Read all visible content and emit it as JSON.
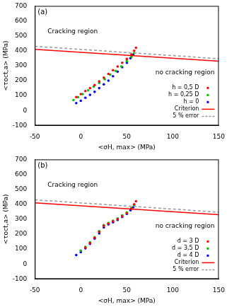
{
  "chart_data": [
    {
      "type": "scatter",
      "title": "(a)",
      "x_label": "<σH, max> (MPa)",
      "y_label": "<τoct,a> (MPa)",
      "annotations": [
        "Cracking region",
        "no cracking region"
      ],
      "xlim": [
        -50,
        150
      ],
      "xticks": [
        -50,
        0,
        50,
        100,
        150
      ],
      "ylim": [
        -100,
        700
      ],
      "yticks": [
        -100,
        0,
        100,
        200,
        300,
        400,
        500,
        600,
        700
      ],
      "grid": false,
      "legend": "lower right",
      "series": [
        {
          "name": "h = 0,5 D",
          "color": "#ff0000",
          "type": "scatter",
          "marker": "circle",
          "x": [
            -5,
            0,
            5,
            10,
            15,
            20,
            25,
            30,
            35,
            40,
            45,
            50,
            55,
            58,
            60
          ],
          "values": [
            90,
            110,
            130,
            150,
            170,
            195,
            220,
            245,
            270,
            295,
            320,
            345,
            375,
            400,
            420
          ]
        },
        {
          "name": "h = 0,25 D",
          "color": "#00c000",
          "type": "scatter",
          "marker": "circle",
          "x": [
            -8,
            -3,
            2,
            8,
            14,
            20,
            26,
            32,
            38,
            44,
            50,
            55,
            58
          ],
          "values": [
            70,
            90,
            110,
            135,
            160,
            185,
            210,
            240,
            265,
            295,
            330,
            360,
            385
          ]
        },
        {
          "name": "h = 0",
          "color": "#0000ff",
          "type": "scatter",
          "marker": "circle",
          "x": [
            -5,
            0,
            5,
            10,
            15,
            20,
            25,
            30,
            35,
            40,
            45,
            50,
            54,
            57
          ],
          "values": [
            50,
            65,
            85,
            105,
            125,
            150,
            175,
            200,
            230,
            260,
            290,
            320,
            350,
            375
          ]
        },
        {
          "name": "Criterion",
          "color": "#ff0000",
          "type": "line",
          "marker": "none",
          "line_style": "solid",
          "x": [
            -50,
            150
          ],
          "values": [
            410,
            330
          ]
        },
        {
          "name": "5 % error",
          "color": "#999999",
          "type": "line",
          "marker": "none",
          "line_style": "dashed",
          "x": [
            -50,
            150
          ],
          "values": [
            430,
            347
          ]
        }
      ]
    },
    {
      "type": "scatter",
      "title": "(b)",
      "x_label": "<σH, max> (MPa)",
      "y_label": "<τoct,a> (MPa)",
      "annotations": [
        "Cracking region",
        "no cracking region"
      ],
      "xlim": [
        -50,
        150
      ],
      "xticks": [
        -50,
        0,
        50,
        100,
        150
      ],
      "ylim": [
        -100,
        700
      ],
      "yticks": [
        -100,
        0,
        100,
        200,
        300,
        400,
        500,
        600,
        700
      ],
      "grid": false,
      "legend": "lower right",
      "series": [
        {
          "name": "d = 3 D",
          "color": "#ff0000",
          "type": "scatter",
          "marker": "circle",
          "x": [
            5,
            10,
            15,
            20,
            25,
            30,
            35,
            40,
            45,
            50,
            55,
            58,
            60
          ],
          "values": [
            110,
            140,
            175,
            215,
            255,
            270,
            285,
            300,
            320,
            340,
            370,
            400,
            420
          ]
        },
        {
          "name": "d = 3,5 D",
          "color": "#00c000",
          "type": "scatter",
          "marker": "circle",
          "x": [
            0,
            5,
            10,
            15,
            20,
            25,
            30,
            35,
            40,
            45,
            50,
            55,
            58
          ],
          "values": [
            90,
            115,
            145,
            180,
            220,
            260,
            275,
            290,
            305,
            325,
            345,
            375,
            395
          ]
        },
        {
          "name": "d = 4 D",
          "color": "#0000ff",
          "type": "scatter",
          "marker": "circle",
          "x": [
            -5,
            0,
            5,
            10,
            15,
            20,
            25,
            30,
            35,
            40,
            45,
            50,
            54,
            57
          ],
          "values": [
            60,
            80,
            105,
            135,
            170,
            205,
            245,
            265,
            280,
            295,
            315,
            335,
            360,
            380
          ]
        },
        {
          "name": "Criterion",
          "color": "#ff0000",
          "type": "line",
          "marker": "none",
          "line_style": "solid",
          "x": [
            -50,
            150
          ],
          "values": [
            410,
            330
          ]
        },
        {
          "name": "5 % error",
          "color": "#999999",
          "type": "line",
          "marker": "none",
          "line_style": "dashed",
          "x": [
            -50,
            150
          ],
          "values": [
            430,
            347
          ]
        }
      ]
    }
  ]
}
